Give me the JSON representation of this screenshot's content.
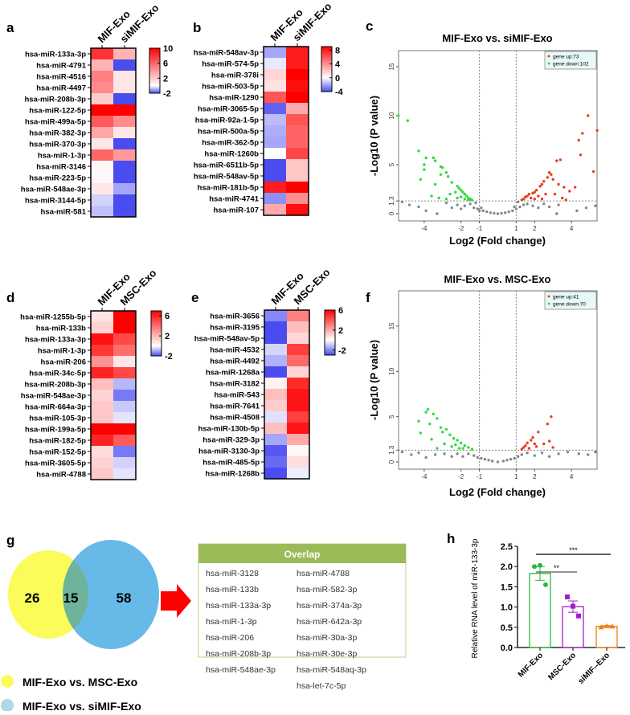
{
  "panels": {
    "a": "a",
    "b": "b",
    "c": "c",
    "d": "d",
    "e": "e",
    "f": "f",
    "g": "g",
    "h": "h"
  },
  "colors": {
    "low": "#4b4cf0",
    "mid": "#ffffff",
    "high": "#ff0000",
    "up": "#e8401c",
    "down": "#2ddb3c",
    "ns": "#7f8c8c",
    "venn_yellow": "#fbfb5a",
    "venn_blue": "#5ab4e6",
    "overlap_header": "#9bbb59",
    "arrow": "#ff0000"
  },
  "chart_data": [
    {
      "type": "heatmap",
      "id": "a",
      "columns": [
        "MIF-Exo",
        "siMIF-Exo"
      ],
      "scale": {
        "ticks": [
          10,
          6,
          2,
          -2
        ],
        "range": [
          -2,
          10
        ]
      },
      "rows": [
        "hsa-miR-133a-3p",
        "hsa-miR-4791",
        "hsa-miR-4516",
        "hsa-miR-4497",
        "hsa-miR-208b-3p",
        "hsa-miR-122-5p",
        "hsa-miR-499a-5p",
        "hsa-miR-382-3p",
        "hsa-miR-370-3p",
        "hsa-miR-1-3p",
        "hsa-miR-3146",
        "hsa-miR-223-5p",
        "hsa-miR-548ae-3p",
        "hsa-miR-3144-5p",
        "hsa-miR-581"
      ],
      "values": [
        [
          8,
          3
        ],
        [
          3,
          -2
        ],
        [
          5,
          1
        ],
        [
          4.5,
          1
        ],
        [
          2,
          -2
        ],
        [
          10,
          10
        ],
        [
          6.5,
          4.5
        ],
        [
          3.5,
          1
        ],
        [
          1,
          -2
        ],
        [
          6,
          4
        ],
        [
          0.3,
          -2
        ],
        [
          0.3,
          -2
        ],
        [
          1,
          -1
        ],
        [
          -0.5,
          -2
        ],
        [
          -0.7,
          -2
        ]
      ]
    },
    {
      "type": "heatmap",
      "id": "b",
      "columns": [
        "MIF-Exo",
        "siMIF-Exo"
      ],
      "scale": {
        "ticks": [
          8,
          4,
          0,
          -4
        ],
        "range": [
          -4,
          9
        ]
      },
      "rows": [
        "hsa-miR-548av-3p",
        "hsa-miR-574-5p",
        "hsa-miR-378i",
        "hsa-miR-503-5p",
        "hsa-miR-1290",
        "hsa-miR-3065-5p",
        "hsa-miR-92a-1-5p",
        "hsa-miR-500a-5p",
        "hsa-miR-362-5p",
        "hsa-miR-1260b",
        "hsa-miR-6511b-5p",
        "hsa-miR-548av-5p",
        "hsa-miR-181b-5p",
        "hsa-miR-4741",
        "hsa-miR-107"
      ],
      "values": [
        [
          -2,
          8
        ],
        [
          -0.5,
          8
        ],
        [
          1.5,
          9
        ],
        [
          1,
          8.5
        ],
        [
          6,
          9
        ],
        [
          -3.5,
          3
        ],
        [
          -1.5,
          6
        ],
        [
          -1.8,
          5.5
        ],
        [
          -2,
          5.5
        ],
        [
          0,
          6.5
        ],
        [
          -4,
          2
        ],
        [
          -4,
          2
        ],
        [
          8,
          9
        ],
        [
          -2.5,
          4
        ],
        [
          3,
          8.5
        ]
      ]
    },
    {
      "type": "scatter",
      "id": "c",
      "title": "MIF-Exo vs. siMIF-Exo",
      "xlabel": "Log2 (Fold change)",
      "ylabel": "-Log10 (P value)",
      "xlim": [
        -5.4,
        5.4
      ],
      "ylim": [
        -0.7,
        16.6
      ],
      "xticks": [
        -4,
        -2,
        -1,
        1,
        2,
        4
      ],
      "yticks": [
        0,
        1.3,
        5,
        10,
        15
      ],
      "thresholds": {
        "x": [
          -1,
          1
        ],
        "y": 1.3
      },
      "legend": {
        "position": "top-right",
        "up": "gene up:73",
        "down": "gene down:102"
      },
      "up": [
        [
          4.9,
          10
        ],
        [
          5.4,
          8.5
        ],
        [
          4.6,
          8.2
        ],
        [
          4.4,
          7.5
        ],
        [
          4.5,
          6
        ],
        [
          3.2,
          5.4
        ],
        [
          3.4,
          5.5
        ],
        [
          5.2,
          4.3
        ],
        [
          2.8,
          4.2
        ],
        [
          2.9,
          4
        ],
        [
          2.7,
          3.7
        ],
        [
          3.0,
          3.5
        ],
        [
          2.5,
          3.3
        ],
        [
          3.3,
          3
        ],
        [
          2.4,
          3
        ],
        [
          2.3,
          2.8
        ],
        [
          4.2,
          2.7
        ],
        [
          3.6,
          2.7
        ],
        [
          2.1,
          2.4
        ],
        [
          2,
          2.2
        ],
        [
          1.9,
          2.1
        ],
        [
          1.7,
          2
        ],
        [
          1.6,
          1.8
        ],
        [
          1.5,
          1.7
        ],
        [
          1.4,
          1.5
        ],
        [
          1.3,
          1.4
        ],
        [
          3.9,
          2.3
        ],
        [
          2.6,
          2
        ],
        [
          2.2,
          1.8
        ],
        [
          3.1,
          2
        ],
        [
          3.5,
          1.6
        ],
        [
          2.4,
          1.5
        ],
        [
          3.7,
          1.4
        ],
        [
          1.8,
          1.6
        ],
        [
          2.0,
          1.5
        ]
      ],
      "down": [
        [
          -5.4,
          10
        ],
        [
          -4.9,
          9.5
        ],
        [
          -4.3,
          6.4
        ],
        [
          -3.9,
          5.7
        ],
        [
          -4,
          5
        ],
        [
          -4,
          4.5
        ],
        [
          -4.2,
          3.5
        ],
        [
          -3.5,
          5.7
        ],
        [
          -3.4,
          5.4
        ],
        [
          -3.1,
          4.8
        ],
        [
          -3.0,
          4.7
        ],
        [
          -3.1,
          4
        ],
        [
          -2.8,
          4.2
        ],
        [
          -2.7,
          3.8
        ],
        [
          -3.4,
          3
        ],
        [
          -2.5,
          3.2
        ],
        [
          -2.2,
          2.8
        ],
        [
          -2.1,
          2.6
        ],
        [
          -2.0,
          2.4
        ],
        [
          -1.9,
          2.2
        ],
        [
          -1.8,
          2.0
        ],
        [
          -1.7,
          1.8
        ],
        [
          -1.6,
          1.6
        ],
        [
          -1.5,
          1.5
        ],
        [
          -1.4,
          1.4
        ],
        [
          -2.3,
          2.2
        ],
        [
          -2.6,
          2
        ],
        [
          -3.6,
          1.8
        ],
        [
          -3.2,
          1.6
        ],
        [
          -2.8,
          1.5
        ],
        [
          -2.0,
          1.7
        ],
        [
          -1.8,
          1.5
        ],
        [
          -2.2,
          1.6
        ],
        [
          -1.6,
          1.4
        ]
      ],
      "ns": [
        [
          -5.2,
          1.2
        ],
        [
          -4.8,
          0.9
        ],
        [
          -4.3,
          0.7
        ],
        [
          -3.9,
          0.3
        ],
        [
          -3.3,
          0
        ],
        [
          -2.8,
          1.1
        ],
        [
          -2.5,
          0.6
        ],
        [
          -2.2,
          0.9
        ],
        [
          -2,
          0.5
        ],
        [
          -1.8,
          0.8
        ],
        [
          -1.5,
          1.0
        ],
        [
          -1.3,
          0.6
        ],
        [
          -1.1,
          0.5
        ],
        [
          -1.0,
          0.3
        ],
        [
          -0.8,
          0.3
        ],
        [
          -0.6,
          0.2
        ],
        [
          -0.4,
          0.1
        ],
        [
          -0.2,
          0.05
        ],
        [
          0,
          0
        ],
        [
          0.2,
          0.05
        ],
        [
          0.4,
          0.1
        ],
        [
          0.6,
          0.2
        ],
        [
          0.8,
          0.3
        ],
        [
          1.0,
          0.5
        ],
        [
          1.2,
          0.7
        ],
        [
          1.4,
          0.9
        ],
        [
          1.6,
          1.0
        ],
        [
          1.9,
          0.8
        ],
        [
          2.2,
          0.6
        ],
        [
          2.5,
          1.0
        ],
        [
          2.8,
          0.7
        ],
        [
          3.3,
          0.9
        ],
        [
          3.2,
          0
        ],
        [
          4.3,
          0.3
        ],
        [
          4.8,
          0.6
        ],
        [
          5.3,
          0.8
        ],
        [
          -1.2,
          1.1
        ],
        [
          1.1,
          1.2
        ],
        [
          -0.9,
          0.6
        ],
        [
          0.9,
          0.7
        ]
      ]
    },
    {
      "type": "heatmap",
      "id": "d",
      "columns": [
        "MIF-Exo",
        "MSC-Exo"
      ],
      "scale": {
        "ticks": [
          6,
          2,
          -2
        ],
        "range": [
          -2,
          7
        ]
      },
      "rows": [
        "hsa-miR-1255b-5p",
        "hsa-miR-133b",
        "hsa-miR-133a-3p",
        "hsa-miR-1-3p",
        "hsa-miR-206",
        "hsa-miR-34c-5p",
        "hsa-miR-208b-3p",
        "hsa-miR-548ae-3p",
        "hsa-miR-664a-3p",
        "hsa-miR-105-3p",
        "hsa-miR-199a-5p",
        "hsa-miR-182-5p",
        "hsa-miR-152-5p",
        "hsa-miR-3605-5p",
        "hsa-miR-4788"
      ],
      "values": [
        [
          0.8,
          7
        ],
        [
          1.2,
          7
        ],
        [
          6.5,
          5
        ],
        [
          5.5,
          4
        ],
        [
          3,
          0.7
        ],
        [
          6,
          5
        ],
        [
          1.8,
          -0.8
        ],
        [
          1.2,
          -1.5
        ],
        [
          1.5,
          -0.6
        ],
        [
          1.5,
          -0.3
        ],
        [
          7,
          7
        ],
        [
          6,
          4.5
        ],
        [
          1,
          -1.5
        ],
        [
          1.2,
          -0.5
        ],
        [
          1.5,
          -0.3
        ]
      ]
    },
    {
      "type": "heatmap",
      "id": "e",
      "columns": [
        "MIF-Exo",
        "MSC-Exo"
      ],
      "scale": {
        "ticks": [
          6,
          2,
          -2
        ],
        "range": [
          -3,
          6
        ]
      },
      "rows": [
        "hsa-miR-3656",
        "hsa-miR-3195",
        "hsa-miR-548av-5p",
        "hsa-miR-4532",
        "hsa-miR-4492",
        "hsa-miR-1268a",
        "hsa-miR-3182",
        "hsa-miR-543",
        "hsa-miR-7641",
        "hsa-miR-4508",
        "hsa-miR-130b-5p",
        "hsa-miR-329-3p",
        "hsa-miR-3130-3p",
        "hsa-miR-485-5p",
        "hsa-miR-1268b"
      ],
      "values": [
        [
          -2,
          3
        ],
        [
          -3,
          1.5
        ],
        [
          -3,
          1
        ],
        [
          -0.7,
          4.5
        ],
        [
          -1.3,
          3.5
        ],
        [
          -3,
          1
        ],
        [
          0.3,
          5
        ],
        [
          1.5,
          5.5
        ],
        [
          1.2,
          5.5
        ],
        [
          -0.5,
          4.5
        ],
        [
          1.5,
          5.5
        ],
        [
          -1.5,
          2
        ],
        [
          -2.8,
          0.2
        ],
        [
          -2.5,
          0.8
        ],
        [
          -3,
          -0.3
        ]
      ]
    },
    {
      "type": "scatter",
      "id": "f",
      "title": "MIF-Exo vs. MSC-Exo",
      "xlabel": "Log2 (Fold change)",
      "ylabel": "-Log10 (P value)",
      "xlim": [
        -5.4,
        5.4
      ],
      "ylim": [
        -0.6,
        19
      ],
      "xticks": [
        -4,
        -2,
        -1,
        1,
        2,
        4
      ],
      "yticks": [
        0,
        1.3,
        5,
        10,
        15
      ],
      "thresholds": {
        "x": [
          -1,
          1
        ],
        "y": 1.3
      },
      "legend": {
        "position": "top-right",
        "up": "gene up:41",
        "down": "gene down:70"
      },
      "up": [
        [
          2.9,
          5
        ],
        [
          2.7,
          4.2
        ],
        [
          2.2,
          3.3
        ],
        [
          1.9,
          2.7
        ],
        [
          1.8,
          2.4
        ],
        [
          1.6,
          2.1
        ],
        [
          1.5,
          1.8
        ],
        [
          1.4,
          1.6
        ],
        [
          1.3,
          1.4
        ],
        [
          2.5,
          2
        ],
        [
          2.1,
          1.7
        ],
        [
          2.8,
          2.3
        ],
        [
          3.0,
          1.6
        ],
        [
          1.7,
          1.5
        ],
        [
          2.0,
          2.0
        ]
      ],
      "down": [
        [
          -3.8,
          5.8
        ],
        [
          -3.9,
          5.5
        ],
        [
          -4.3,
          4.5
        ],
        [
          -3.5,
          5.3
        ],
        [
          -3.3,
          4.8
        ],
        [
          -3.7,
          4.2
        ],
        [
          -4.2,
          3.2
        ],
        [
          -3.1,
          3.8
        ],
        [
          -2.8,
          3.6
        ],
        [
          -3.0,
          3.3
        ],
        [
          -2.6,
          3
        ],
        [
          -2.4,
          2.6
        ],
        [
          -2.2,
          2.4
        ],
        [
          -2,
          2.1
        ],
        [
          -1.8,
          1.8
        ],
        [
          -1.6,
          1.6
        ],
        [
          -1.4,
          1.4
        ],
        [
          -3.6,
          2.5
        ],
        [
          -2.9,
          2
        ],
        [
          -2.5,
          1.7
        ],
        [
          -2.1,
          1.5
        ],
        [
          -3.3,
          1.5
        ],
        [
          -1.9,
          1.5
        ],
        [
          -2.3,
          1.9
        ]
      ],
      "ns": [
        [
          -5.2,
          1.1
        ],
        [
          -4.7,
          0.8
        ],
        [
          -4.3,
          1.0
        ],
        [
          -3.9,
          0.5
        ],
        [
          -3.4,
          0.8
        ],
        [
          -2.9,
          0.9
        ],
        [
          -2.5,
          0.6
        ],
        [
          -2.2,
          0.9
        ],
        [
          -1.9,
          0.6
        ],
        [
          -1.6,
          0.9
        ],
        [
          -1.3,
          0.7
        ],
        [
          -1.1,
          0.5
        ],
        [
          -0.9,
          0.4
        ],
        [
          -0.7,
          0.3
        ],
        [
          -0.5,
          0.2
        ],
        [
          -0.3,
          0.1
        ],
        [
          0,
          0
        ],
        [
          0.3,
          0.1
        ],
        [
          0.5,
          0.2
        ],
        [
          0.7,
          0.3
        ],
        [
          0.9,
          0.4
        ],
        [
          1.1,
          0.6
        ],
        [
          1.3,
          0.8
        ],
        [
          1.6,
          1.0
        ],
        [
          2.0,
          0.7
        ],
        [
          2.4,
          1.0
        ],
        [
          2.8,
          0.6
        ],
        [
          3.3,
          0.9
        ],
        [
          3.8,
          1.1
        ],
        [
          4.4,
          0.9
        ],
        [
          4.9,
          0.8
        ],
        [
          5.3,
          1.1
        ]
      ]
    },
    {
      "type": "venn",
      "id": "g",
      "sets": [
        {
          "name": "MIF-Exo vs. MSC-Exo",
          "only": 26
        },
        {
          "name": "MIF-Exo vs. siMIF-Exo",
          "only": 58
        }
      ],
      "overlap": 15,
      "overlap_table": {
        "header": "Overlap",
        "col1": [
          "hsa-miR-3128",
          "hsa-miR-133b",
          "hsa-miR-133a-3p",
          "hsa-miR-1-3p",
          "hsa-miR-206",
          "hsa-miR-208b-3p",
          "hsa-miR-548ae-3p"
        ],
        "col2": [
          "hsa-miR-4788",
          "hsa-miR-582-3p",
          "hsa-miR-374a-3p",
          "hsa-miR-642a-3p",
          "hsa-miR-30a-3p",
          "hsa-miR-30e-3p",
          "hsa-miR-548aq-3p",
          "hsa-let-7c-5p"
        ]
      }
    },
    {
      "type": "bar",
      "id": "h",
      "ylabel": "Relative RNA level of  miR-133-3p",
      "ylim": [
        0,
        2.5
      ],
      "yticks": [
        "0.0",
        "0.5",
        "1.0",
        "1.5",
        "2.0",
        "2.5"
      ],
      "categories": [
        "MIF-Exo",
        "MSC-Exo",
        "siMIF--Exo"
      ],
      "values": [
        1.83,
        1.01,
        0.52
      ],
      "sem": [
        0.17,
        0.14,
        0.02
      ],
      "points": [
        [
          2.0,
          2.03,
          1.55
        ],
        [
          1.25,
          1.02,
          0.78
        ],
        [
          0.5,
          0.53,
          0.52
        ]
      ],
      "colors": [
        "#2bb83a",
        "#a020c8",
        "#f07f10"
      ],
      "significance": [
        {
          "pair": [
            0,
            1
          ],
          "label": "**"
        },
        {
          "pair": [
            0,
            2
          ],
          "label": "***"
        }
      ]
    }
  ]
}
